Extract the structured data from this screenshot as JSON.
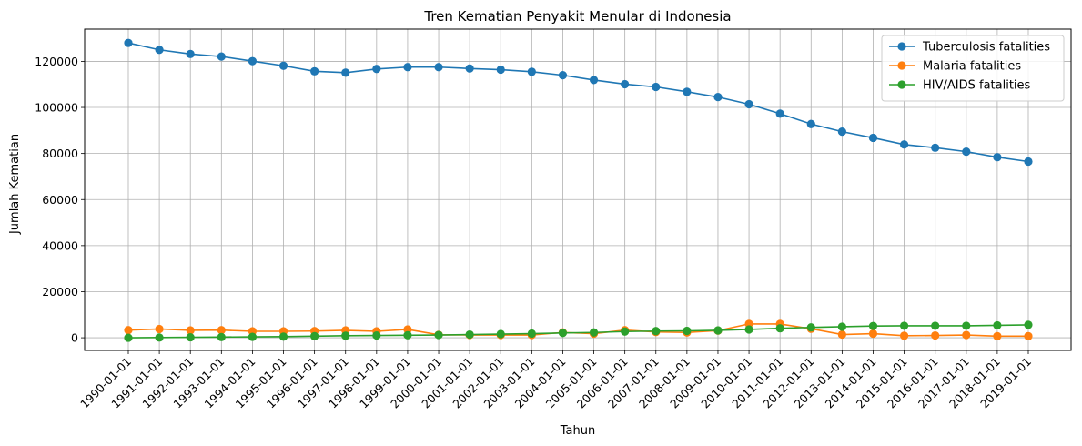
{
  "chart_data": {
    "type": "line",
    "title": "Tren Kematian Penyakit Menular di Indonesia",
    "xlabel": "Tahun",
    "ylabel": "Jumlah Kematian",
    "x": [
      "1990-01-01",
      "1991-01-01",
      "1992-01-01",
      "1993-01-01",
      "1994-01-01",
      "1995-01-01",
      "1996-01-01",
      "1997-01-01",
      "1998-01-01",
      "1999-01-01",
      "2000-01-01",
      "2001-01-01",
      "2002-01-01",
      "2003-01-01",
      "2004-01-01",
      "2005-01-01",
      "2006-01-01",
      "2007-01-01",
      "2008-01-01",
      "2009-01-01",
      "2010-01-01",
      "2011-01-01",
      "2012-01-01",
      "2013-01-01",
      "2014-01-01",
      "2015-01-01",
      "2016-01-01",
      "2017-01-01",
      "2018-01-01",
      "2019-01-01"
    ],
    "ylim": [
      -5500,
      134000
    ],
    "yticks": [
      0,
      20000,
      40000,
      60000,
      80000,
      100000,
      120000
    ],
    "grid": true,
    "legend": "top-right",
    "series": [
      {
        "name": "Tuberculosis fatalities",
        "color": "#1f77b4",
        "values": [
          128000,
          125000,
          123200,
          122100,
          120100,
          118100,
          115700,
          115100,
          116700,
          117500,
          117500,
          116900,
          116400,
          115500,
          114000,
          111900,
          110100,
          108900,
          106800,
          104500,
          101400,
          97300,
          92800,
          89500,
          86800,
          83900,
          82500,
          80800,
          78400,
          76500
        ]
      },
      {
        "name": "Malaria fatalities",
        "color": "#ff7f0e",
        "values": [
          3300,
          3800,
          3200,
          3300,
          2800,
          2800,
          2900,
          3200,
          2800,
          3600,
          1300,
          1200,
          1200,
          1200,
          2300,
          1800,
          3300,
          2500,
          2300,
          3100,
          6000,
          6000,
          3900,
          1400,
          1800,
          900,
          1000,
          1200,
          700,
          700
        ]
      },
      {
        "name": "HIV/AIDS fatalities",
        "color": "#2ca02c",
        "values": [
          0,
          100,
          200,
          300,
          400,
          500,
          700,
          900,
          1000,
          1100,
          1200,
          1400,
          1600,
          1800,
          2100,
          2300,
          2700,
          2900,
          3000,
          3200,
          3600,
          4100,
          4500,
          4800,
          5100,
          5200,
          5200,
          5200,
          5400,
          5600
        ]
      }
    ]
  }
}
